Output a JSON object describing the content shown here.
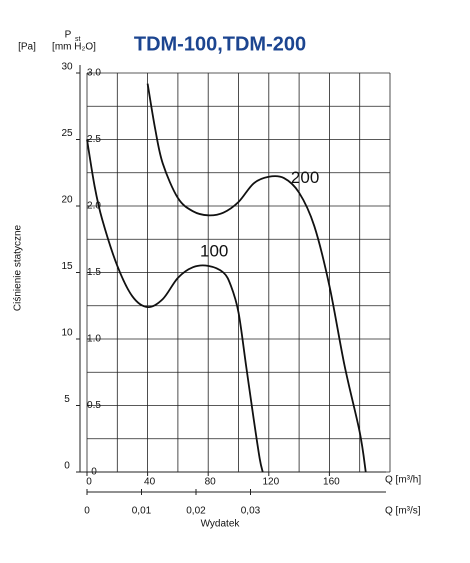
{
  "chart_data": {
    "type": "line",
    "title": "TDM-100,TDM-200",
    "y_label": "Ciśnienie statyczne",
    "y_symbol": "P",
    "y_symbol_sub": "st",
    "y_unit": "[Pa]",
    "y2_unit": "[mm H₂O]",
    "x_label": "Wydatek",
    "x_unit": "Q [m³/h]",
    "x2_unit": "Q [m³/s]",
    "xlim": [
      0,
      200
    ],
    "xticks": [
      0,
      40,
      80,
      120,
      160
    ],
    "x2lim": [
      0,
      0.0556
    ],
    "x2ticks": [
      0,
      {
        "value": 0.01,
        "label": "0,01"
      },
      {
        "value": 0.02,
        "label": "0,02"
      },
      {
        "value": 0.03,
        "label": "0,03"
      }
    ],
    "ylim": [
      0,
      30
    ],
    "yticks": [
      0,
      5,
      10,
      15,
      20,
      25,
      30
    ],
    "y2lim": [
      0,
      3.0
    ],
    "y2ticks": [
      0,
      0.5,
      {
        "value": 1.0,
        "label": "1.0"
      },
      1.5,
      {
        "value": 2.0,
        "label": "2.0"
      },
      2.5,
      {
        "value": 3.0,
        "label": "3.0"
      }
    ],
    "xgrid": [
      0,
      20,
      40,
      60,
      80,
      100,
      120,
      140,
      160,
      180,
      200
    ],
    "ygrid": [
      0,
      2.5,
      5,
      7.5,
      10,
      12.5,
      15,
      17.5,
      20,
      22.5,
      25,
      27.5,
      30
    ],
    "series": [
      {
        "name": "100",
        "color": "#111111",
        "x": [
          0,
          5,
          10,
          20,
          30,
          40,
          50,
          60,
          70,
          80,
          90,
          95,
          100,
          105,
          110,
          114,
          116
        ],
        "values": [
          25,
          21.5,
          19,
          15.5,
          13.2,
          12.4,
          13,
          14.6,
          15.4,
          15.5,
          15,
          14,
          12,
          8,
          4,
          1,
          0
        ]
      },
      {
        "name": "200",
        "color": "#111111",
        "x": [
          40,
          45,
          50,
          60,
          70,
          80,
          90,
          100,
          110,
          120,
          130,
          140,
          150,
          160,
          170,
          180,
          184
        ],
        "values": [
          29.2,
          25.8,
          23.2,
          20.6,
          19.6,
          19.3,
          19.5,
          20.3,
          21.7,
          22.2,
          22.1,
          21,
          18.5,
          14,
          8,
          3,
          0
        ]
      }
    ]
  }
}
